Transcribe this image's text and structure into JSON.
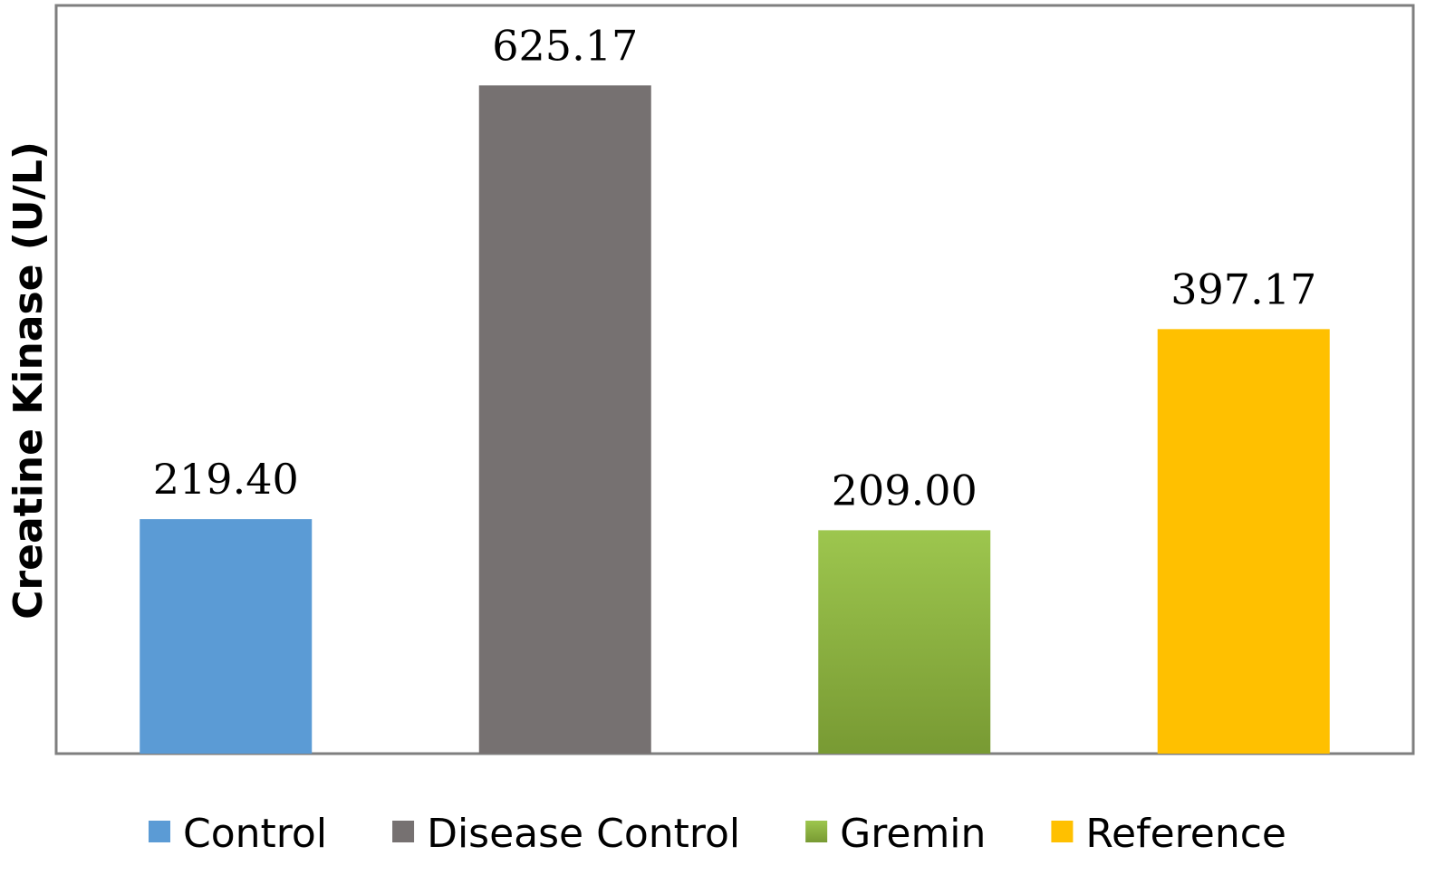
{
  "chart_data": {
    "type": "bar",
    "categories": [
      "Control",
      "Disease Control",
      "Gremin",
      "Reference"
    ],
    "values": [
      219.4,
      625.17,
      209.0,
      397.17
    ],
    "value_labels": [
      "219.40",
      "625.17",
      "209.00",
      "397.17"
    ],
    "title": "",
    "xlabel": "",
    "ylabel": "Creatine Kinase (U/L)",
    "ylim": [
      0,
      700
    ],
    "grid": false,
    "legend_position": "bottom",
    "colors": [
      "#5b9bd5",
      "#767171",
      "#8bb447",
      "#ffc000"
    ]
  }
}
